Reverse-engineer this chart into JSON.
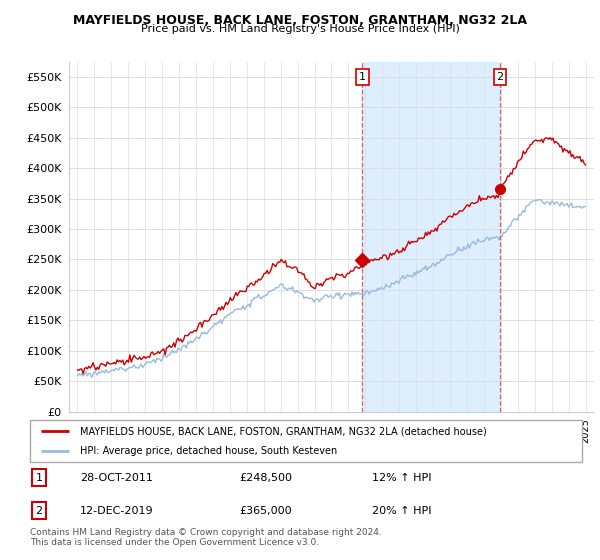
{
  "title": "MAYFIELDS HOUSE, BACK LANE, FOSTON, GRANTHAM, NG32 2LA",
  "subtitle": "Price paid vs. HM Land Registry's House Price Index (HPI)",
  "legend_line1": "MAYFIELDS HOUSE, BACK LANE, FOSTON, GRANTHAM, NG32 2LA (detached house)",
  "legend_line2": "HPI: Average price, detached house, South Kesteven",
  "footnote": "Contains HM Land Registry data © Crown copyright and database right 2024.\nThis data is licensed under the Open Government Licence v3.0.",
  "transaction1_date": "28-OCT-2011",
  "transaction1_price": "£248,500",
  "transaction1_hpi": "12% ↑ HPI",
  "transaction2_date": "12-DEC-2019",
  "transaction2_price": "£365,000",
  "transaction2_hpi": "20% ↑ HPI",
  "yticks": [
    0,
    50000,
    100000,
    150000,
    200000,
    250000,
    300000,
    350000,
    400000,
    450000,
    500000,
    550000
  ],
  "plot_bg_color": "#ffffff",
  "grid_color": "#dddddd",
  "red_color": "#cc0000",
  "blue_color": "#99bbdd",
  "shade_color": "#ddeeff",
  "marker1_x": 2011.83,
  "marker1_y": 248500,
  "marker2_x": 2019.95,
  "marker2_y": 365000,
  "vline1_x": 2011.83,
  "vline2_x": 2019.95,
  "xmin": 1994.5,
  "xmax": 2025.5,
  "ymin": 0,
  "ymax": 575000
}
